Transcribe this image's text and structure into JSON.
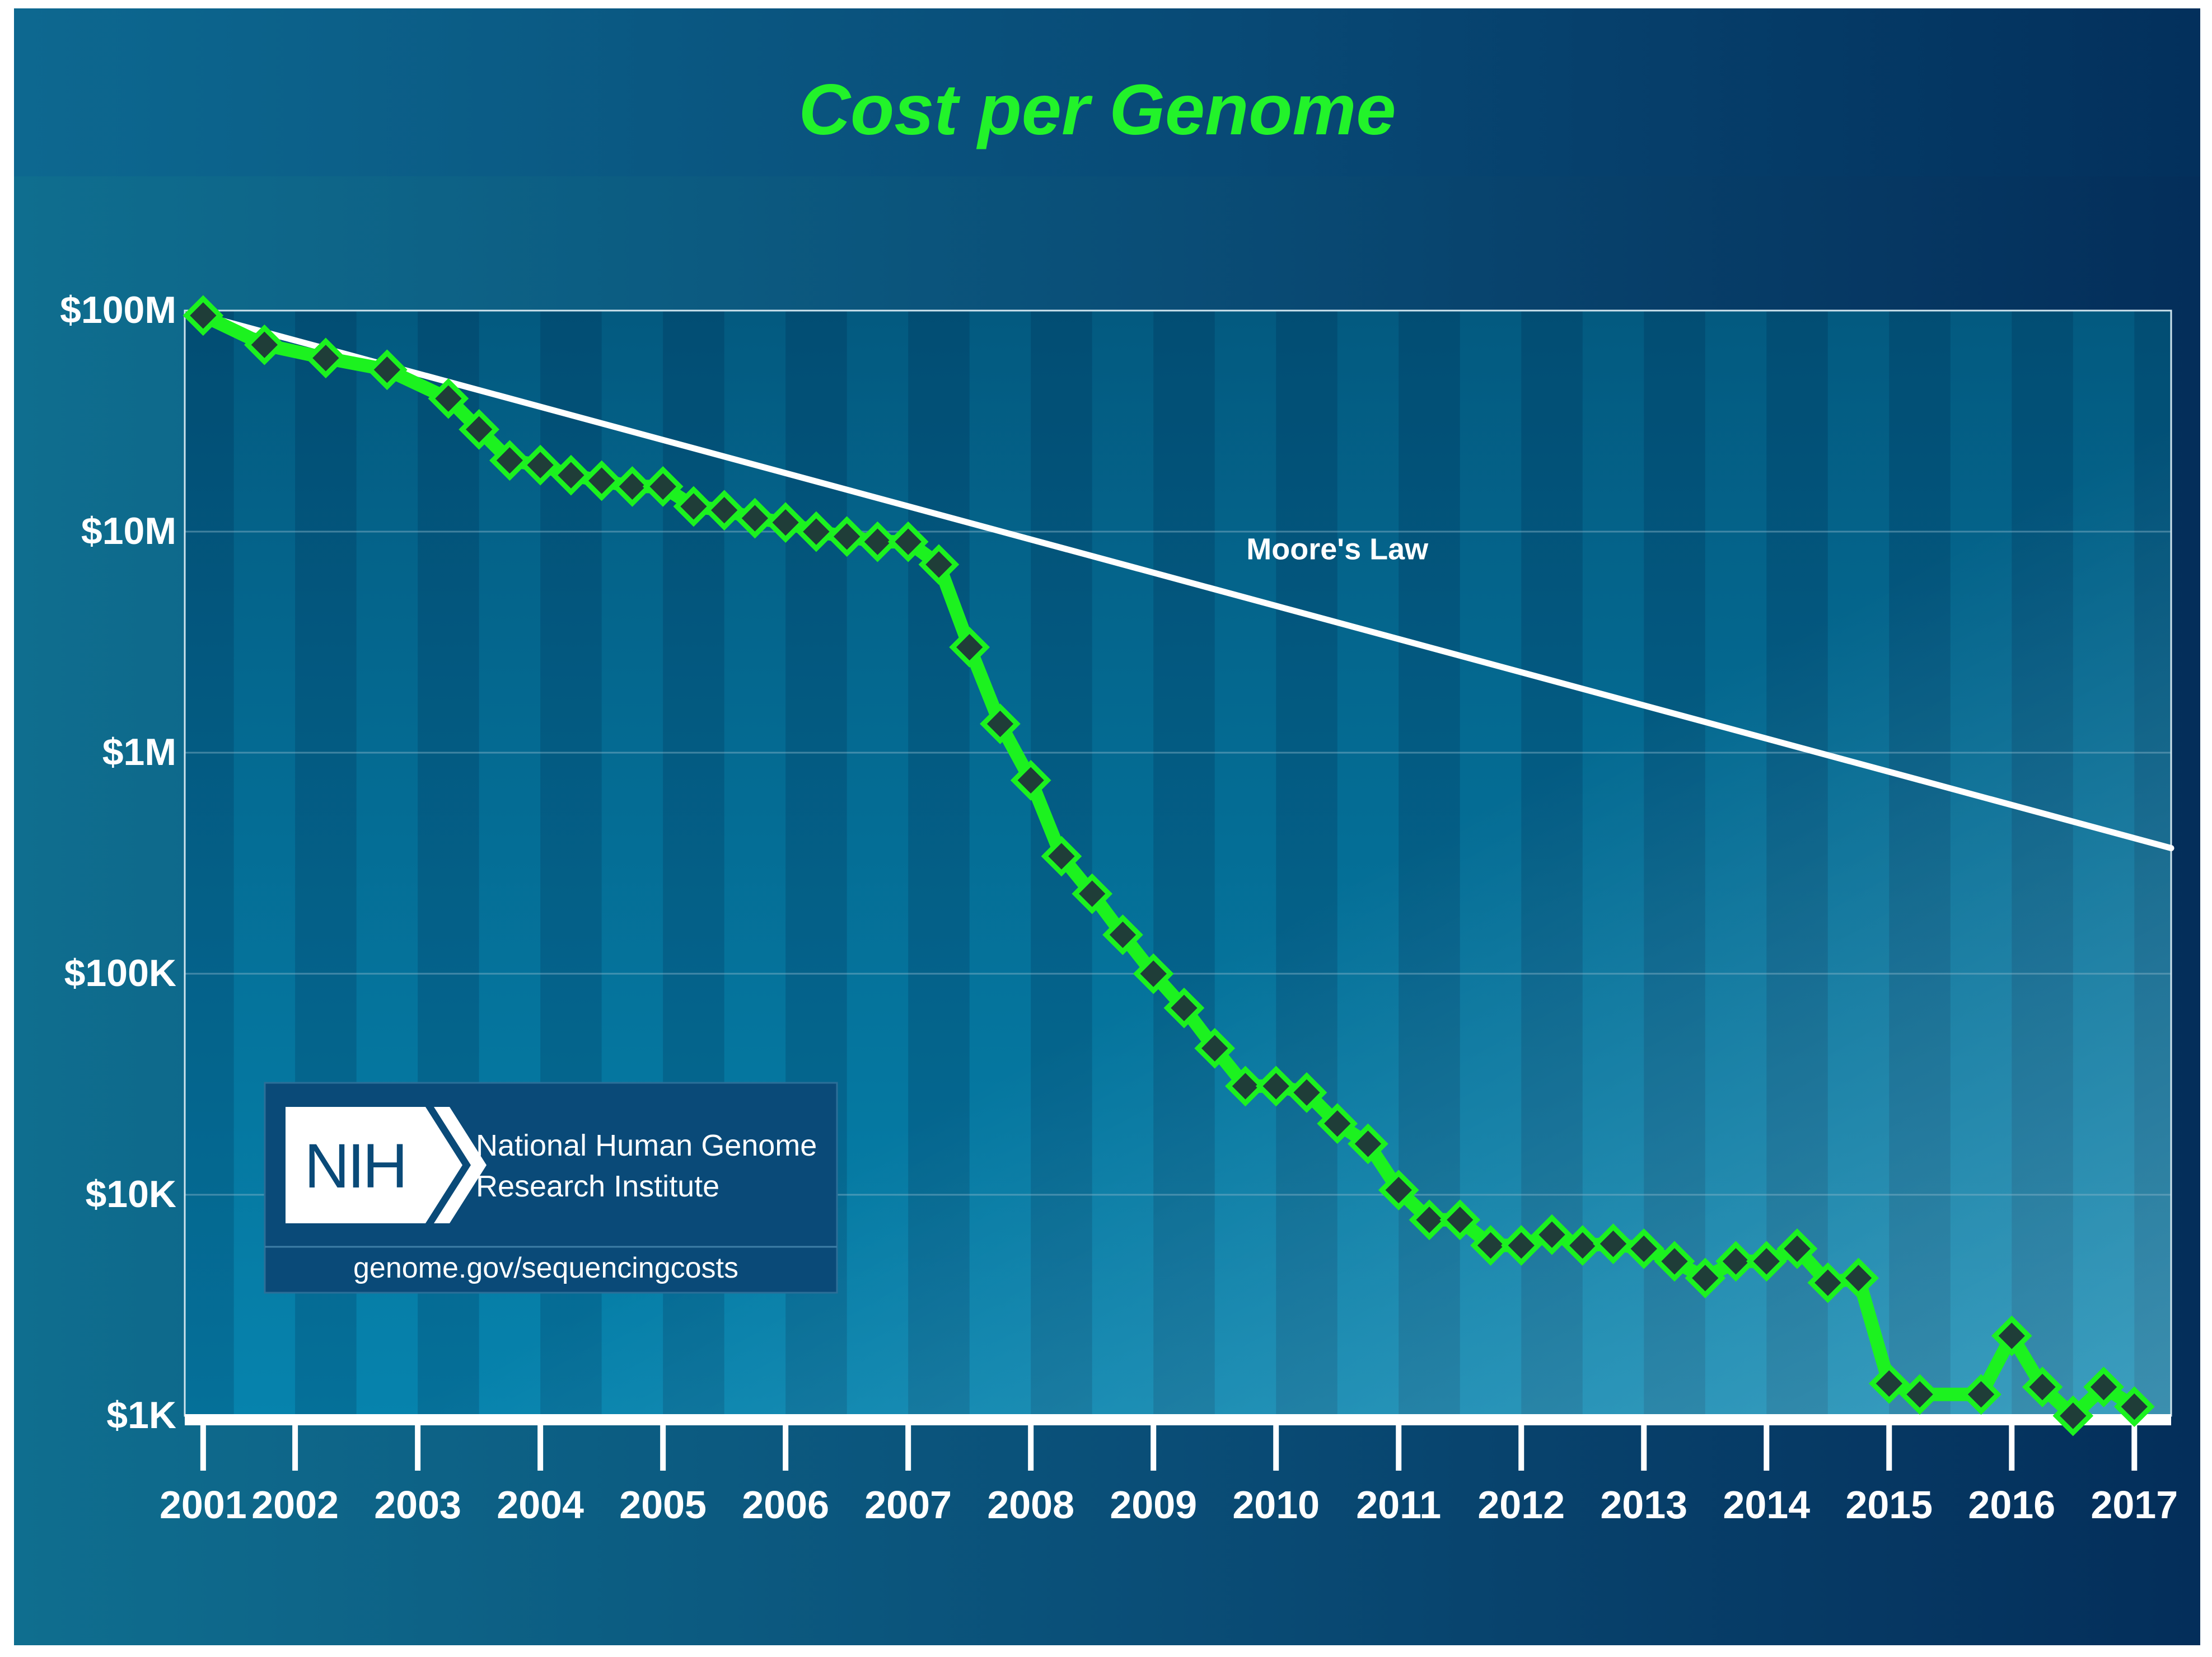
{
  "colors": {
    "title": "#22f32a",
    "series": "#1cf21f",
    "marker": "#1f3d38",
    "moore": "#ffffff",
    "axis_text": "#ffffff"
  },
  "chart_data": {
    "type": "line",
    "title": "Cost per Genome",
    "xlabel": "",
    "ylabel": "",
    "yscale": "log10",
    "ylim": [
      1000,
      100000000
    ],
    "xlim": [
      2001.6,
      2017.8
    ],
    "y_ticks": [
      {
        "value": 100000000,
        "label": "$100M"
      },
      {
        "value": 10000000,
        "label": "$10M"
      },
      {
        "value": 1000000,
        "label": "$1M"
      },
      {
        "value": 100000,
        "label": "$100K"
      },
      {
        "value": 10000,
        "label": "$10K"
      },
      {
        "value": 1000,
        "label": "$1K"
      }
    ],
    "x_ticks": [
      {
        "value": 2001.75,
        "label": "2001"
      },
      {
        "value": 2002.5,
        "label": "2002"
      },
      {
        "value": 2003.5,
        "label": "2003"
      },
      {
        "value": 2004.5,
        "label": "2004"
      },
      {
        "value": 2005.5,
        "label": "2005"
      },
      {
        "value": 2006.5,
        "label": "2006"
      },
      {
        "value": 2007.5,
        "label": "2007"
      },
      {
        "value": 2008.5,
        "label": "2008"
      },
      {
        "value": 2009.5,
        "label": "2009"
      },
      {
        "value": 2010.5,
        "label": "2010"
      },
      {
        "value": 2011.5,
        "label": "2011"
      },
      {
        "value": 2012.5,
        "label": "2012"
      },
      {
        "value": 2013.5,
        "label": "2013"
      },
      {
        "value": 2014.5,
        "label": "2014"
      },
      {
        "value": 2015.5,
        "label": "2015"
      },
      {
        "value": 2016.5,
        "label": "2016"
      },
      {
        "value": 2017.5,
        "label": "2017"
      }
    ],
    "series": [
      {
        "name": "Cost per Genome",
        "x": [
          2001.75,
          2002.25,
          2002.75,
          2003.25,
          2003.75,
          2004.0,
          2004.25,
          2004.5,
          2004.75,
          2005.0,
          2005.25,
          2005.5,
          2005.75,
          2006.0,
          2006.25,
          2006.5,
          2006.75,
          2007.0,
          2007.25,
          2007.5,
          2007.75,
          2008.0,
          2008.25,
          2008.5,
          2008.75,
          2009.0,
          2009.25,
          2009.5,
          2009.75,
          2010.0,
          2010.25,
          2010.5,
          2010.75,
          2011.0,
          2011.25,
          2011.5,
          2011.75,
          2012.0,
          2012.25,
          2012.5,
          2012.75,
          2013.0,
          2013.25,
          2013.5,
          2013.75,
          2014.0,
          2014.25,
          2014.5,
          2014.75,
          2015.0,
          2015.25,
          2015.5,
          2015.75,
          2016.25,
          2016.5,
          2016.75,
          2017.0,
          2017.25,
          2017.5
        ],
        "values": [
          95000000,
          70000000,
          61000000,
          54000000,
          40000000,
          29000000,
          21000000,
          20000000,
          18000000,
          17000000,
          16000000,
          16000000,
          13000000,
          12500000,
          11500000,
          11000000,
          10000000,
          9500000,
          9000000,
          9000000,
          7100000,
          3000000,
          1350000,
          750000,
          340000,
          230000,
          150000,
          100000,
          70000,
          46000,
          31000,
          31000,
          29000,
          21000,
          17000,
          10500,
          7700,
          7700,
          5900,
          5900,
          6600,
          5900,
          6000,
          5700,
          5000,
          4200,
          5000,
          5000,
          5700,
          4000,
          4200,
          1400,
          1250,
          1250,
          2300,
          1350,
          1000,
          1350,
          1100
        ]
      },
      {
        "name": "Moore's Law",
        "x": [
          2001.75,
          2017.8
        ],
        "values": [
          95000000,
          370000
        ]
      }
    ],
    "annotations": [
      {
        "text": "Moore's Law",
        "x": 2011.0,
        "y": 7500000
      }
    ]
  },
  "logo": {
    "abbr": "NIH",
    "name_line1": "National Human Genome",
    "name_line2": "Research Institute",
    "url": "genome.gov/sequencingcosts"
  }
}
